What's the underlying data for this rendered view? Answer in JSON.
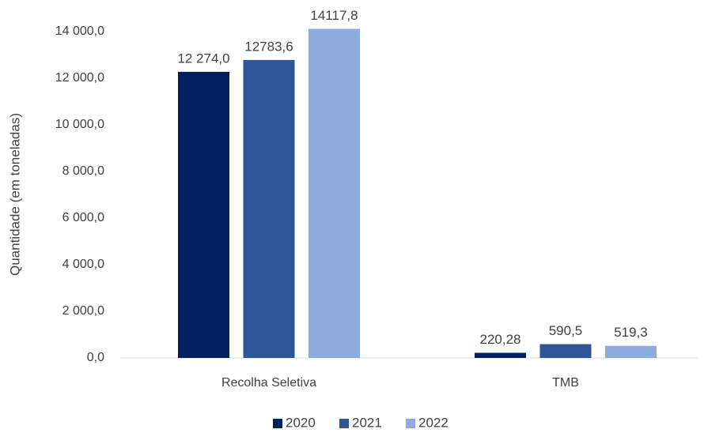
{
  "chart_data": {
    "type": "bar",
    "y_label": "Quantidade (em toneladas)",
    "categories": [
      "Recolha Seletiva",
      "TMB"
    ],
    "series": [
      {
        "name": "2020",
        "color": "#002060",
        "values": [
          12274.0,
          220.28
        ],
        "value_labels": [
          "12 274,0",
          "220,28"
        ]
      },
      {
        "name": "2021",
        "color": "#2f5597",
        "values": [
          12783.6,
          590.5
        ],
        "value_labels": [
          "12783,6",
          "590,5"
        ]
      },
      {
        "name": "2022",
        "color": "#8faadc",
        "values": [
          14117.8,
          519.3
        ],
        "value_labels": [
          "14117,8",
          "519,3"
        ]
      }
    ],
    "ylim": [
      0,
      14000
    ],
    "yticks": [
      {
        "value": 0,
        "label": "0,0"
      },
      {
        "value": 2000,
        "label": "2 000,0"
      },
      {
        "value": 4000,
        "label": "4 000,0"
      },
      {
        "value": 6000,
        "label": "6 000,0"
      },
      {
        "value": 8000,
        "label": "8 000,0"
      },
      {
        "value": 10000,
        "label": "10 000,0"
      },
      {
        "value": 12000,
        "label": "12 000,0"
      },
      {
        "value": 14000,
        "label": "14 000,0"
      }
    ],
    "grid": false,
    "legend": "bottom"
  }
}
